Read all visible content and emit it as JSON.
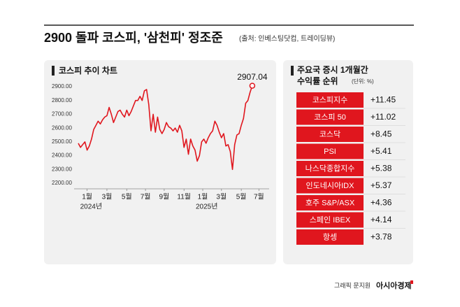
{
  "header": {
    "title": "2900 돌파 코스피, '삼천피' 정조준",
    "source": "(출처: 인베스팅닷컴, 트레이딩뷰)"
  },
  "chart_data": {
    "type": "line",
    "title": "코스피 추이 차트",
    "xlim": [
      0,
      83
    ],
    "xticks": [
      {
        "value": 4,
        "label": "1월"
      },
      {
        "value": 13,
        "label": "3월"
      },
      {
        "value": 22,
        "label": "5월"
      },
      {
        "value": 30.5,
        "label": "7월"
      },
      {
        "value": 39,
        "label": "9월"
      },
      {
        "value": 48,
        "label": "11월"
      },
      {
        "value": 56.5,
        "label": "1월"
      },
      {
        "value": 65,
        "label": "3월"
      },
      {
        "value": 74,
        "label": "5월"
      },
      {
        "value": 82,
        "label": "7월"
      }
    ],
    "xtick_years": [
      {
        "value": 4,
        "label": "2024년"
      },
      {
        "value": 56.5,
        "label": "2025년"
      }
    ],
    "ylim": [
      2200,
      2900
    ],
    "yticks": [
      {
        "value": 2900,
        "label": "2900.00"
      },
      {
        "value": 2800,
        "label": "2800.00"
      },
      {
        "value": 2700,
        "label": "2700.00"
      },
      {
        "value": 2600,
        "label": "2600.00"
      },
      {
        "value": 2500,
        "label": "2500.00"
      },
      {
        "value": 2400,
        "label": "2400.00"
      },
      {
        "value": 2300,
        "label": "2300.00"
      },
      {
        "value": 2200,
        "label": "2200.00"
      }
    ],
    "grid": false,
    "series": [
      {
        "name": "코스피",
        "color": "#e0161e",
        "values": [
          2490,
          2460,
          2480,
          2500,
          2440,
          2470,
          2520,
          2590,
          2620,
          2650,
          2630,
          2660,
          2680,
          2690,
          2750,
          2700,
          2640,
          2680,
          2720,
          2730,
          2700,
          2680,
          2730,
          2690,
          2720,
          2760,
          2800,
          2800,
          2830,
          2800,
          2870,
          2880,
          2770,
          2580,
          2700,
          2570,
          2680,
          2590,
          2560,
          2590,
          2640,
          2610,
          2600,
          2580,
          2600,
          2570,
          2620,
          2580,
          2460,
          2520,
          2410,
          2520,
          2470,
          2440,
          2360,
          2400,
          2500,
          2520,
          2490,
          2530,
          2560,
          2580,
          2650,
          2620,
          2570,
          2530,
          2560,
          2470,
          2480,
          2430,
          2300,
          2480,
          2550,
          2560,
          2620,
          2670,
          2780,
          2800,
          2860,
          2907.04
        ]
      }
    ]
  },
  "ranking": {
    "title_line1": "주요국 증시 1개월간",
    "title_line2": "수익률 순위",
    "unit": "(단위: %)",
    "rows": [
      [
        "코스피지수",
        "+11.45"
      ],
      [
        "코스피 50",
        "+11.02"
      ],
      [
        "코스닥",
        "+8.45"
      ],
      [
        "PSI",
        "+5.41"
      ],
      [
        "나스닥종합지수",
        "+5.38"
      ],
      [
        "인도네시아IDX",
        "+5.37"
      ],
      [
        "호주 S&P/ASX",
        "+4.36"
      ],
      [
        "스페인 IBEX",
        "+4.14"
      ],
      [
        "항셍",
        "+3.78"
      ]
    ]
  },
  "footer": {
    "credit": "그래픽 문지원",
    "brand": "아시아경제"
  }
}
